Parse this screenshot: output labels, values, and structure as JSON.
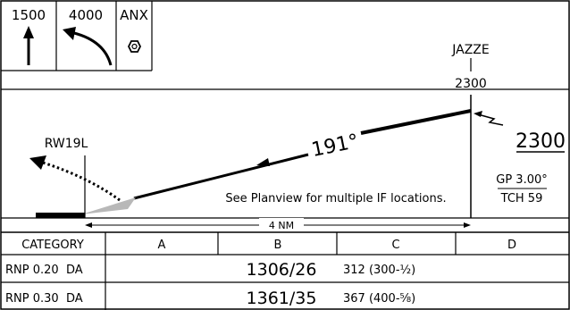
{
  "missed_approach_icons": [
    {
      "label": "1500",
      "icon": "straight-up-arrow-icon"
    },
    {
      "label": "4000",
      "icon": "left-turn-arrow-icon"
    },
    {
      "label": "ANX",
      "icon": "hexagon-holding-fix-icon"
    }
  ],
  "profile": {
    "fix_name": "JAZZE",
    "fix_altitude": "2300",
    "procedure_altitude": "2300",
    "course": "191°",
    "runway": "RW19L",
    "note": "See Planview for multiple IF locations.",
    "glidepath": "GP 3.00°",
    "tch": "TCH 59",
    "distance": "4 NM"
  },
  "minimums": {
    "category_header": "CATEGORY",
    "categories": [
      "A",
      "B",
      "C",
      "D"
    ],
    "rows": [
      {
        "label": "RNP 0.20  DA",
        "da": "1306/26",
        "hat": "312 (300-½)"
      },
      {
        "label": "RNP 0.30  DA",
        "da": "1361/35",
        "hat": "367 (400-⅝)"
      }
    ]
  },
  "colors": {
    "ink": "#000000",
    "runway_fill": "#000000",
    "arrow_grey": "#b8b8b8"
  }
}
